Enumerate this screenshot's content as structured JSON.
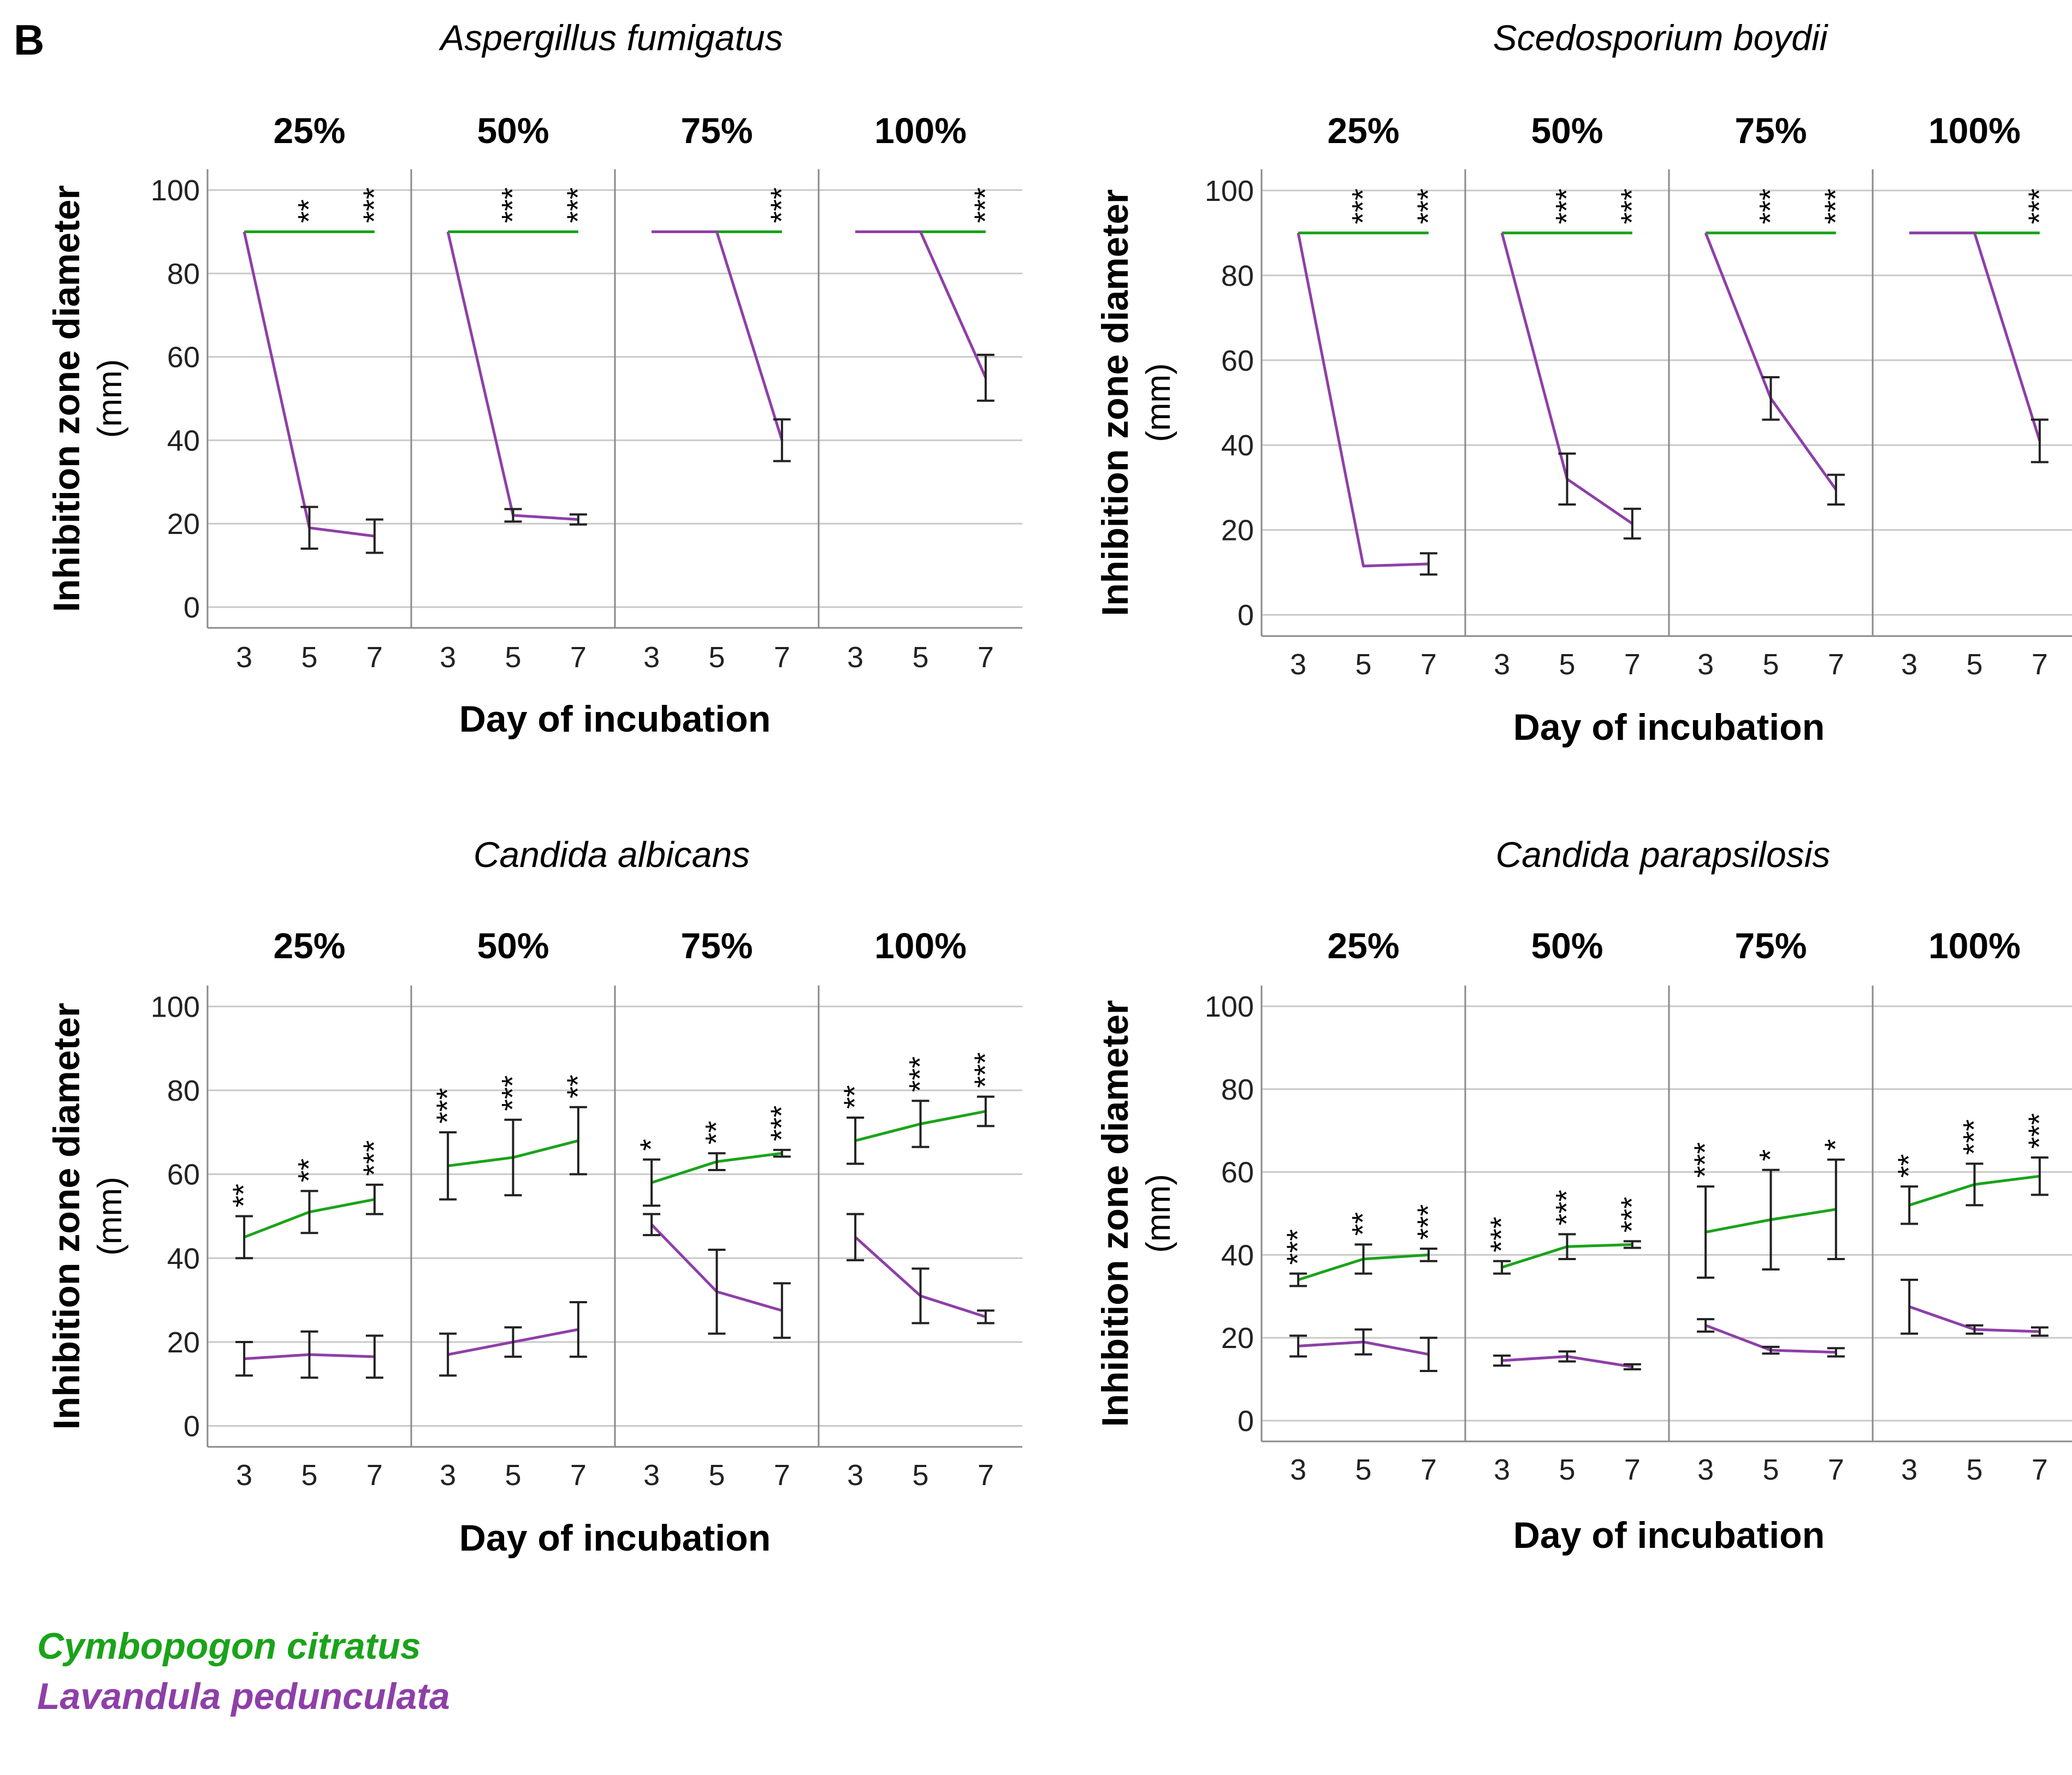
{
  "panel_letter": "B",
  "legend": [
    {
      "name": "Cymbopogon citratus",
      "color": "#1aa31a"
    },
    {
      "name": "Lavandula pedunculata",
      "color": "#8e3fa8"
    }
  ],
  "chart_data": [
    {
      "type": "line",
      "title": "Aspergillus fumigatus",
      "xlabel": "Day of incubation",
      "ylabel": "Inhibition zone diameter",
      "ylabel_unit": "(mm)",
      "ylim": [
        -5,
        105
      ],
      "yticks": [
        "0",
        "20",
        "40",
        "60",
        "80",
        "100"
      ],
      "x": [
        "3",
        "5",
        "7"
      ],
      "facets": [
        {
          "label": "25%",
          "series": [
            {
              "name": "Cymbopogon citratus",
              "values": [
                90,
                90,
                90
              ],
              "err": [
                0,
                0,
                0
              ]
            },
            {
              "name": "Lavandula pedunculata",
              "values": [
                90,
                19,
                17
              ],
              "err": [
                0,
                5,
                4
              ]
            }
          ],
          "stars": [
            "",
            "**",
            "***"
          ]
        },
        {
          "label": "50%",
          "series": [
            {
              "name": "Cymbopogon citratus",
              "values": [
                90,
                90,
                90
              ],
              "err": [
                0,
                0,
                0
              ]
            },
            {
              "name": "Lavandula pedunculata",
              "values": [
                90,
                22,
                21
              ],
              "err": [
                0,
                1.5,
                1.2
              ]
            }
          ],
          "stars": [
            "",
            "***",
            "***"
          ]
        },
        {
          "label": "75%",
          "series": [
            {
              "name": "Cymbopogon citratus",
              "values": [
                90,
                90,
                90
              ],
              "err": [
                0,
                0,
                0
              ]
            },
            {
              "name": "Lavandula pedunculata",
              "values": [
                90,
                90,
                40
              ],
              "err": [
                0,
                0,
                5
              ]
            }
          ],
          "stars": [
            "",
            "",
            "***"
          ]
        },
        {
          "label": "100%",
          "series": [
            {
              "name": "Cymbopogon citratus",
              "values": [
                90,
                90,
                90
              ],
              "err": [
                0,
                0,
                0
              ]
            },
            {
              "name": "Lavandula pedunculata",
              "values": [
                90,
                90,
                55
              ],
              "err": [
                0,
                0,
                5.5
              ]
            }
          ],
          "stars": [
            "",
            "",
            "***"
          ]
        }
      ]
    },
    {
      "type": "line",
      "title": "Scedosporium boydii",
      "xlabel": "Day of incubation",
      "ylabel": "Inhibition zone diameter",
      "ylabel_unit": "(mm)",
      "ylim": [
        -5,
        105
      ],
      "yticks": [
        "0",
        "20",
        "40",
        "60",
        "80",
        "100"
      ],
      "x": [
        "3",
        "5",
        "7"
      ],
      "facets": [
        {
          "label": "25%",
          "series": [
            {
              "name": "Cymbopogon citratus",
              "values": [
                90,
                90,
                90
              ],
              "err": [
                0,
                0,
                0
              ]
            },
            {
              "name": "Lavandula pedunculata",
              "values": [
                90,
                11.5,
                12
              ],
              "err": [
                0,
                0,
                2.5
              ]
            }
          ],
          "stars": [
            "",
            "***",
            "***"
          ]
        },
        {
          "label": "50%",
          "series": [
            {
              "name": "Cymbopogon citratus",
              "values": [
                90,
                90,
                90
              ],
              "err": [
                0,
                0,
                0
              ]
            },
            {
              "name": "Lavandula pedunculata",
              "values": [
                90,
                32,
                21.5
              ],
              "err": [
                0,
                6,
                3.5
              ]
            }
          ],
          "stars": [
            "",
            "***",
            "***"
          ]
        },
        {
          "label": "75%",
          "series": [
            {
              "name": "Cymbopogon citratus",
              "values": [
                90,
                90,
                90
              ],
              "err": [
                0,
                0,
                0
              ]
            },
            {
              "name": "Lavandula pedunculata",
              "values": [
                90,
                51,
                29.5
              ],
              "err": [
                0,
                5,
                3.5
              ]
            }
          ],
          "stars": [
            "",
            "***",
            "***"
          ]
        },
        {
          "label": "100%",
          "series": [
            {
              "name": "Cymbopogon citratus",
              "values": [
                90,
                90,
                90
              ],
              "err": [
                0,
                0,
                0
              ]
            },
            {
              "name": "Lavandula pedunculata",
              "values": [
                90,
                90,
                41
              ],
              "err": [
                0,
                0,
                5
              ]
            }
          ],
          "stars": [
            "",
            "",
            "***"
          ]
        }
      ]
    },
    {
      "type": "line",
      "title": "Candida albicans",
      "xlabel": "Day of incubation",
      "ylabel": "Inhibition zone diameter",
      "ylabel_unit": "(mm)",
      "ylim": [
        -5,
        105
      ],
      "yticks": [
        "0",
        "20",
        "40",
        "60",
        "80",
        "100"
      ],
      "x": [
        "3",
        "5",
        "7"
      ],
      "facets": [
        {
          "label": "25%",
          "series": [
            {
              "name": "Cymbopogon citratus",
              "values": [
                45,
                51,
                54
              ],
              "err": [
                5,
                5,
                3.5
              ]
            },
            {
              "name": "Lavandula pedunculata",
              "values": [
                16,
                17,
                16.5
              ],
              "err": [
                4,
                5.5,
                5
              ]
            }
          ],
          "stars": [
            "**",
            "**",
            "***"
          ]
        },
        {
          "label": "50%",
          "series": [
            {
              "name": "Cymbopogon citratus",
              "values": [
                62,
                64,
                68
              ],
              "err": [
                8,
                9,
                8
              ]
            },
            {
              "name": "Lavandula pedunculata",
              "values": [
                17,
                20,
                23
              ],
              "err": [
                5,
                3.5,
                6.5
              ]
            }
          ],
          "stars": [
            "***",
            "***",
            "**"
          ]
        },
        {
          "label": "75%",
          "series": [
            {
              "name": "Cymbopogon citratus",
              "values": [
                58,
                63,
                65
              ],
              "err": [
                5.5,
                2,
                0.8
              ]
            },
            {
              "name": "Lavandula pedunculata",
              "values": [
                48,
                32,
                27.5
              ],
              "err": [
                2.5,
                10,
                6.5
              ]
            }
          ],
          "stars": [
            "*",
            "**",
            "***"
          ]
        },
        {
          "label": "100%",
          "series": [
            {
              "name": "Cymbopogon citratus",
              "values": [
                68,
                72,
                75
              ],
              "err": [
                5.5,
                5.5,
                3.5
              ]
            },
            {
              "name": "Lavandula pedunculata",
              "values": [
                45,
                31,
                26
              ],
              "err": [
                5.5,
                6.5,
                1.5
              ]
            }
          ],
          "stars": [
            "**",
            "***",
            "***"
          ]
        }
      ]
    },
    {
      "type": "line",
      "title": "Candida parapsilosis",
      "xlabel": "Day of incubation",
      "ylabel": "Inhibition zone diameter",
      "ylabel_unit": "(mm)",
      "ylim": [
        -5,
        105
      ],
      "yticks": [
        "0",
        "20",
        "40",
        "60",
        "80",
        "100"
      ],
      "x": [
        "3",
        "5",
        "7"
      ],
      "facets": [
        {
          "label": "25%",
          "series": [
            {
              "name": "Cymbopogon citratus",
              "values": [
                34,
                39,
                40
              ],
              "err": [
                1.5,
                3.5,
                1.5
              ]
            },
            {
              "name": "Lavandula pedunculata",
              "values": [
                18,
                19,
                16
              ],
              "err": [
                2.5,
                3,
                4
              ]
            }
          ],
          "stars": [
            "***",
            "**",
            "***"
          ]
        },
        {
          "label": "50%",
          "series": [
            {
              "name": "Cymbopogon citratus",
              "values": [
                37,
                42,
                42.5
              ],
              "err": [
                1.5,
                3,
                0.8
              ]
            },
            {
              "name": "Lavandula pedunculata",
              "values": [
                14.5,
                15.5,
                13
              ],
              "err": [
                1.2,
                1.2,
                0.6
              ]
            }
          ],
          "stars": [
            "***",
            "***",
            "***"
          ]
        },
        {
          "label": "75%",
          "series": [
            {
              "name": "Cymbopogon citratus",
              "values": [
                45.5,
                48.5,
                51
              ],
              "err": [
                11,
                12,
                12
              ]
            },
            {
              "name": "Lavandula pedunculata",
              "values": [
                23,
                17,
                16.5
              ],
              "err": [
                1.5,
                0.8,
                1
              ]
            }
          ],
          "stars": [
            "***",
            "*",
            "*"
          ]
        },
        {
          "label": "100%",
          "series": [
            {
              "name": "Cymbopogon citratus",
              "values": [
                52,
                57,
                59
              ],
              "err": [
                4.5,
                5,
                4.5
              ]
            },
            {
              "name": "Lavandula pedunculata",
              "values": [
                27.5,
                22,
                21.5
              ],
              "err": [
                6.5,
                1,
                1
              ]
            }
          ],
          "stars": [
            "**",
            "***",
            "***"
          ]
        }
      ]
    }
  ]
}
